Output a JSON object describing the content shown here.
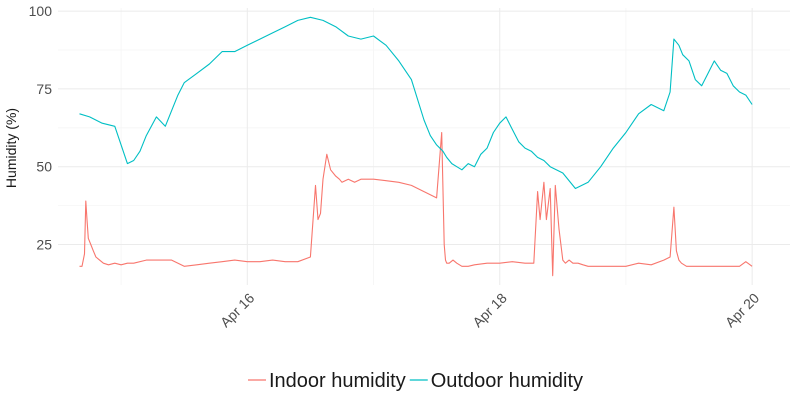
{
  "chart_data": {
    "type": "line",
    "title": "",
    "xlabel": "",
    "ylabel": "Humidity (%)",
    "x_ticks": [
      "Apr 16",
      "Apr 18",
      "Apr 20"
    ],
    "x_tick_days": [
      16,
      18,
      20
    ],
    "xlim": [
      14.5,
      20.3
    ],
    "y_ticks": [
      25,
      50,
      75,
      100
    ],
    "ylim": [
      12,
      101
    ],
    "grid": true,
    "legend_position": "bottom",
    "series": [
      {
        "name": "Indoor humidity",
        "color": "#F8766D",
        "x": [
          14.67,
          14.69,
          14.71,
          14.72,
          14.73,
          14.74,
          14.76,
          14.78,
          14.8,
          14.83,
          14.86,
          14.9,
          14.95,
          15.0,
          15.05,
          15.1,
          15.2,
          15.3,
          15.4,
          15.5,
          15.6,
          15.7,
          15.8,
          15.9,
          16.0,
          16.1,
          16.2,
          16.3,
          16.4,
          16.5,
          16.54,
          16.56,
          16.58,
          16.6,
          16.63,
          16.66,
          16.7,
          16.73,
          16.75,
          16.8,
          16.85,
          16.9,
          17.0,
          17.1,
          17.2,
          17.3,
          17.4,
          17.5,
          17.54,
          17.56,
          17.57,
          17.58,
          17.6,
          17.63,
          17.66,
          17.7,
          17.75,
          17.8,
          17.9,
          18.0,
          18.1,
          18.2,
          18.27,
          18.3,
          18.32,
          18.35,
          18.37,
          18.4,
          18.42,
          18.44,
          18.47,
          18.5,
          18.52,
          18.55,
          18.58,
          18.6,
          18.62,
          18.66,
          18.7,
          18.8,
          18.9,
          19.0,
          19.1,
          19.2,
          19.3,
          19.35,
          19.38,
          19.4,
          19.42,
          19.44,
          19.48,
          19.55,
          19.6,
          19.7,
          19.8,
          19.9,
          19.95,
          20.0
        ],
        "values": [
          18,
          18,
          22,
          39,
          33,
          27,
          25,
          23,
          21,
          20,
          19,
          18.5,
          19,
          18.5,
          19,
          19,
          20,
          20,
          20,
          18,
          18.5,
          19,
          19.5,
          20,
          19.5,
          19.5,
          20,
          19.5,
          19.5,
          21,
          44,
          33,
          35,
          46,
          54,
          49,
          47,
          46,
          45,
          46,
          45,
          46,
          46,
          45.5,
          45,
          44,
          42,
          40,
          61,
          25,
          20,
          19,
          19,
          20,
          19,
          18,
          18,
          18.5,
          19,
          19,
          19.5,
          19,
          19,
          42,
          33,
          45,
          33,
          43,
          15,
          44,
          30,
          20,
          19,
          20,
          19,
          19,
          19,
          18.5,
          18,
          18,
          18,
          18,
          19,
          18.5,
          20,
          21,
          37,
          23,
          20,
          19,
          18,
          18,
          18,
          18,
          18,
          18,
          19.5,
          18
        ]
      },
      {
        "name": "Outdoor humidity",
        "color": "#00BFC4",
        "x": [
          14.67,
          14.75,
          14.85,
          14.95,
          15.0,
          15.05,
          15.1,
          15.15,
          15.2,
          15.28,
          15.35,
          15.4,
          15.45,
          15.5,
          15.6,
          15.7,
          15.8,
          15.9,
          16.0,
          16.1,
          16.2,
          16.3,
          16.4,
          16.5,
          16.6,
          16.7,
          16.8,
          16.9,
          17.0,
          17.1,
          17.2,
          17.3,
          17.4,
          17.45,
          17.5,
          17.55,
          17.58,
          17.62,
          17.66,
          17.7,
          17.75,
          17.8,
          17.85,
          17.9,
          17.95,
          18.0,
          18.05,
          18.1,
          18.15,
          18.2,
          18.25,
          18.3,
          18.35,
          18.4,
          18.5,
          18.6,
          18.7,
          18.8,
          18.9,
          19.0,
          19.1,
          19.2,
          19.3,
          19.35,
          19.38,
          19.4,
          19.42,
          19.45,
          19.5,
          19.55,
          19.6,
          19.65,
          19.7,
          19.75,
          19.8,
          19.85,
          19.9,
          19.95,
          20.0
        ],
        "values": [
          67,
          66,
          64,
          63,
          57,
          51,
          52,
          55,
          60,
          66,
          63,
          68,
          73,
          77,
          80,
          83,
          87,
          87,
          89,
          91,
          93,
          95,
          97,
          98,
          97,
          95,
          92,
          91,
          92,
          89,
          84,
          78,
          65,
          60,
          57,
          55,
          53,
          51,
          50,
          49,
          51,
          50,
          54,
          56,
          61,
          64,
          66,
          62,
          58,
          56,
          55,
          53,
          52,
          50,
          48,
          43,
          45,
          50,
          56,
          61,
          67,
          70,
          68,
          74,
          91,
          90,
          89,
          86,
          84,
          78,
          76,
          80,
          84,
          81,
          80,
          76,
          74,
          73,
          70
        ]
      }
    ]
  }
}
